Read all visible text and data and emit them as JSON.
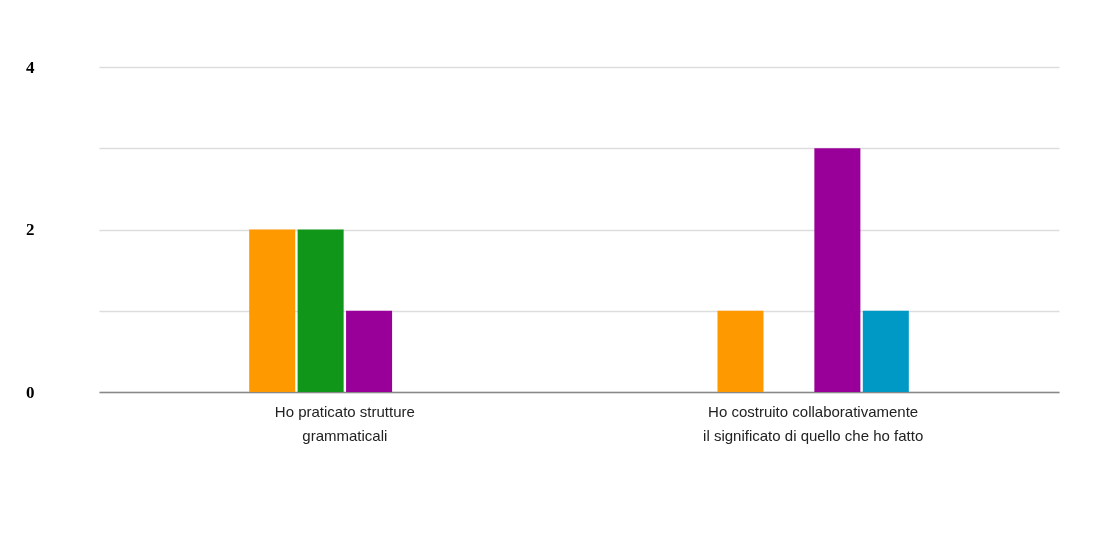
{
  "chart_data": {
    "type": "bar",
    "categories": [
      "Ho praticato strutture\ngrammaticali",
      "Ho costruito collaborativamente\nil significato di quello che ho fatto"
    ],
    "series": [
      {
        "color": "#ff9900",
        "values": [
          2,
          1
        ]
      },
      {
        "color": "#109618",
        "values": [
          2,
          0
        ]
      },
      {
        "color": "#990099",
        "values": [
          1,
          3
        ]
      },
      {
        "color": "#0099c6",
        "values": [
          0,
          1
        ]
      }
    ],
    "ylim": [
      0,
      4
    ],
    "yticks": [
      0,
      {
        "value": 1,
        "label": null
      },
      2,
      {
        "value": 3,
        "label": null
      },
      4
    ],
    "grid": "y"
  }
}
